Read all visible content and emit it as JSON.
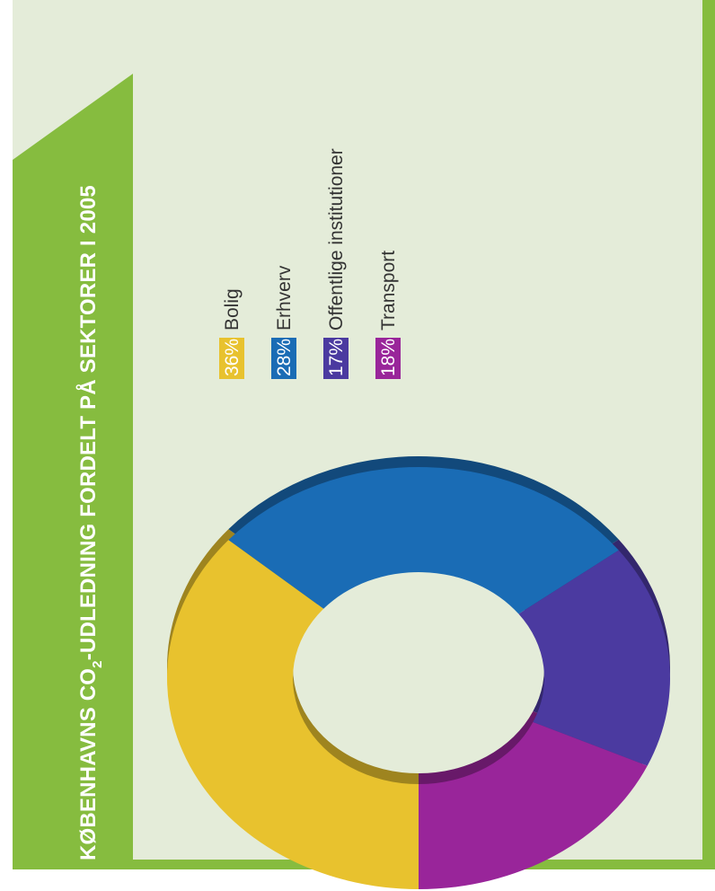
{
  "colors": {
    "page_background": "#ffffff",
    "panel_background": "#e4ecd9",
    "panel_border": "#86bc3f",
    "title_band": "#86bc3f",
    "title_text": "#ffffff",
    "legend_text": "#333333"
  },
  "title": {
    "before": "KØBENHAVNS CO",
    "subscript": "2",
    "after": "-UDLEDNING FORDELT PÅ SEKTORER I 2005"
  },
  "chart_data": {
    "type": "pie",
    "style": "donut",
    "orientation": "rotated 90 degrees counter-clockwise",
    "slices": [
      {
        "label": "Bolig",
        "value": 36,
        "display": "36%",
        "color": "#e8c22e"
      },
      {
        "label": "Erhverv",
        "value": 28,
        "display": "28%",
        "color": "#1a6cb5"
      },
      {
        "label": "Offentlige institutioner",
        "value": 17,
        "display": "17%",
        "color": "#4b3aa0"
      },
      {
        "label": "Transport",
        "value": 18,
        "display": "18%",
        "color": "#99259a"
      }
    ],
    "legend_position": "right of chart"
  }
}
